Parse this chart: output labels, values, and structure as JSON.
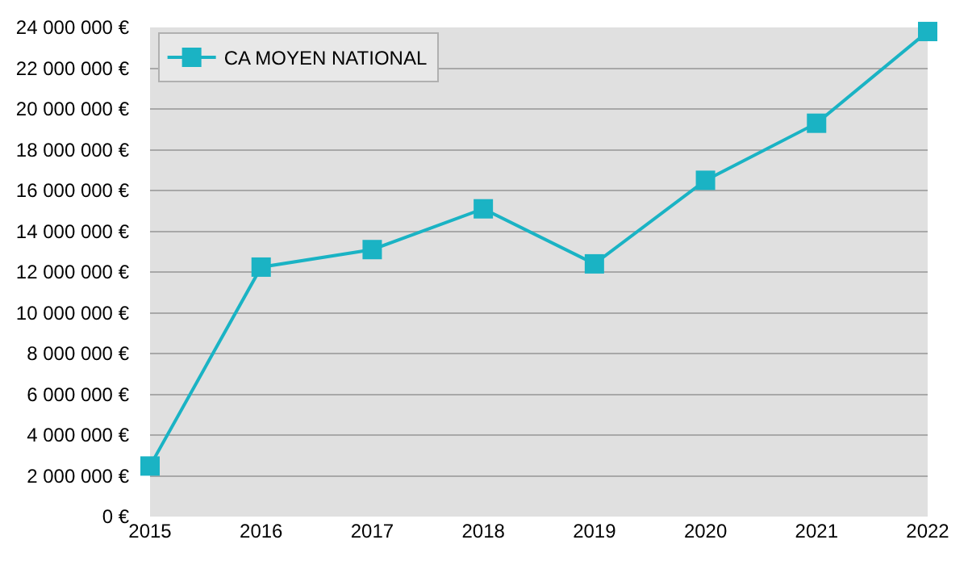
{
  "chart_data": {
    "type": "line",
    "categories": [
      "2015",
      "2016",
      "2017",
      "2018",
      "2019",
      "2020",
      "2021",
      "2022"
    ],
    "series": [
      {
        "name": "CA MOYEN NATIONAL",
        "color": "#1ab3c4",
        "values": [
          2480000,
          12240000,
          13100000,
          15100000,
          12400000,
          16500000,
          19300000,
          23800000
        ]
      }
    ],
    "ylim": [
      0,
      24000000
    ],
    "yticks": [
      {
        "value": 0,
        "label": "0 €"
      },
      {
        "value": 2000000,
        "label": "2 000 000 €"
      },
      {
        "value": 4000000,
        "label": "4 000 000 €"
      },
      {
        "value": 6000000,
        "label": "6 000 000 €"
      },
      {
        "value": 8000000,
        "label": "8 000 000 €"
      },
      {
        "value": 10000000,
        "label": "10 000 000 €"
      },
      {
        "value": 12000000,
        "label": "12 000 000 €"
      },
      {
        "value": 14000000,
        "label": "14 000 000 €"
      },
      {
        "value": 16000000,
        "label": "16 000 000 €"
      },
      {
        "value": 18000000,
        "label": "18 000 000 €"
      },
      {
        "value": 20000000,
        "label": "20 000 000 €"
      },
      {
        "value": 22000000,
        "label": "22 000 000 €"
      },
      {
        "value": 24000000,
        "label": "24 000 000 €"
      }
    ],
    "grid": "y",
    "legend": "top left",
    "marker": "square",
    "line_style": "solid"
  }
}
